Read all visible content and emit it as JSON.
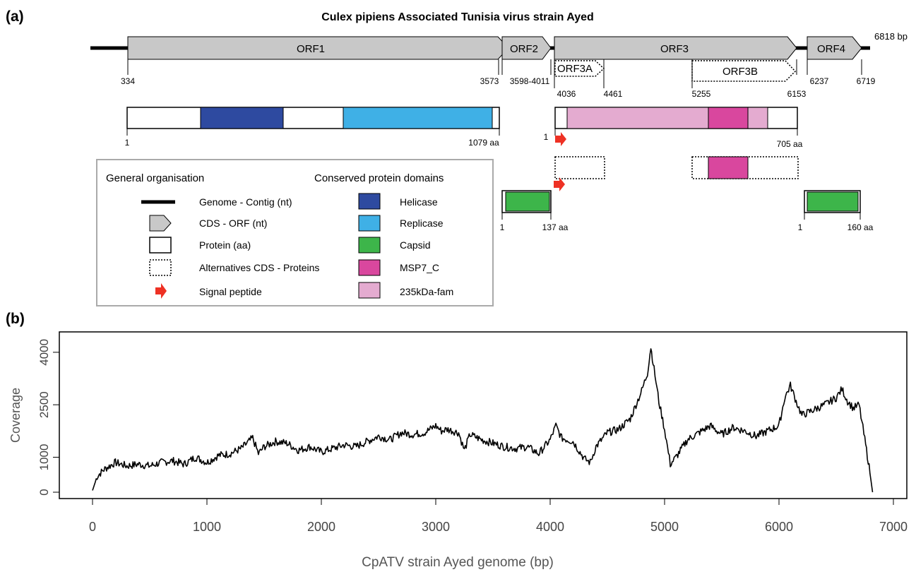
{
  "panel_a": {
    "label": "(a)",
    "title": "Culex pipiens Associated Tunisia virus strain Ayed",
    "genome_size_label": "6818 bp",
    "orfs": [
      {
        "name": "ORF1",
        "start_label": "334",
        "end_label": "3573"
      },
      {
        "name": "ORF2",
        "range_label": "3598-4011"
      },
      {
        "name": "ORF3",
        "start_label": "4036",
        "end_label": "6153"
      },
      {
        "name": "ORF4",
        "start_label": "6237",
        "end_label": "6719"
      }
    ],
    "alt_orfs": [
      {
        "name": "ORF3A",
        "end_label": "4461"
      },
      {
        "name": "ORF3B",
        "start_label": "5255"
      }
    ],
    "proteins": {
      "p1": {
        "start": "1",
        "end": "1079 aa"
      },
      "p3": {
        "start": "1",
        "end": "705 aa"
      },
      "p2": {
        "start": "1",
        "end": "137 aa"
      },
      "p4": {
        "start": "1",
        "end": "160 aa"
      }
    },
    "legend": {
      "left_header": "General organisation",
      "right_header": "Conserved protein domains",
      "left_items": [
        "Genome - Contig (nt)",
        "CDS - ORF (nt)",
        "Protein (aa)",
        "Alternatives CDS - Proteins",
        "Signal peptide"
      ],
      "right_items": [
        {
          "label": "Helicase",
          "color": "#2e4aa0"
        },
        {
          "label": "Replicase",
          "color": "#3fb0e6"
        },
        {
          "label": "Capsid",
          "color": "#3db54a"
        },
        {
          "label": "MSP7_C",
          "color": "#d9479e"
        },
        {
          "label": "235kDa-fam",
          "color": "#e4abd0"
        }
      ]
    },
    "colors": {
      "orf_fill": "#c8c8c8",
      "signal": "#ee3124"
    }
  },
  "panel_b": {
    "label": "(b)"
  },
  "chart_data": {
    "type": "line",
    "xlabel": "CpATV strain Ayed genome (bp)",
    "ylabel": "Coverage",
    "xlim": [
      0,
      7000
    ],
    "ylim": [
      0,
      4300
    ],
    "xticks": [
      "0",
      "1000",
      "2000",
      "3000",
      "4000",
      "5000",
      "6000",
      "7000"
    ],
    "yticks": [
      "0",
      "1000",
      "2500",
      "4000"
    ],
    "series": [
      {
        "x": [
          0,
          40,
          100,
          200,
          300,
          400,
          500,
          600,
          700,
          800,
          900,
          1000,
          1100,
          1200,
          1300,
          1400,
          1450,
          1500,
          1600,
          1700,
          1800,
          1900,
          2000,
          2100,
          2200,
          2300,
          2400,
          2500,
          2600,
          2700,
          2800,
          2900,
          3000,
          3050,
          3100,
          3200,
          3250,
          3300,
          3400,
          3500,
          3600,
          3700,
          3800,
          3900,
          4000,
          4050,
          4100,
          4200,
          4300,
          4350,
          4400,
          4500,
          4600,
          4700,
          4750,
          4800,
          4850,
          4880,
          4900,
          4950,
          5000,
          5050,
          5100,
          5200,
          5300,
          5400,
          5500,
          5600,
          5700,
          5800,
          5900,
          6000,
          6050,
          6100,
          6150,
          6200,
          6300,
          6400,
          6500,
          6550,
          6600,
          6650,
          6700,
          6750,
          6780,
          6818
        ],
        "values": [
          50,
          450,
          650,
          850,
          750,
          800,
          750,
          850,
          900,
          800,
          1000,
          850,
          1050,
          1100,
          1250,
          1550,
          1100,
          1300,
          1450,
          1400,
          1200,
          1300,
          1150,
          1250,
          1350,
          1300,
          1450,
          1600,
          1500,
          1700,
          1650,
          1700,
          1900,
          1750,
          1800,
          1700,
          1200,
          1650,
          1500,
          1400,
          1300,
          1250,
          1300,
          1100,
          1500,
          1900,
          1550,
          1450,
          950,
          850,
          1300,
          1700,
          1800,
          2100,
          2500,
          2900,
          3400,
          4150,
          3700,
          2600,
          1800,
          800,
          1000,
          1500,
          1700,
          1900,
          1650,
          1850,
          1750,
          1600,
          1750,
          1900,
          2700,
          3050,
          2600,
          2200,
          2350,
          2500,
          2700,
          2950,
          2600,
          2400,
          2500,
          1500,
          900,
          0
        ]
      }
    ]
  }
}
